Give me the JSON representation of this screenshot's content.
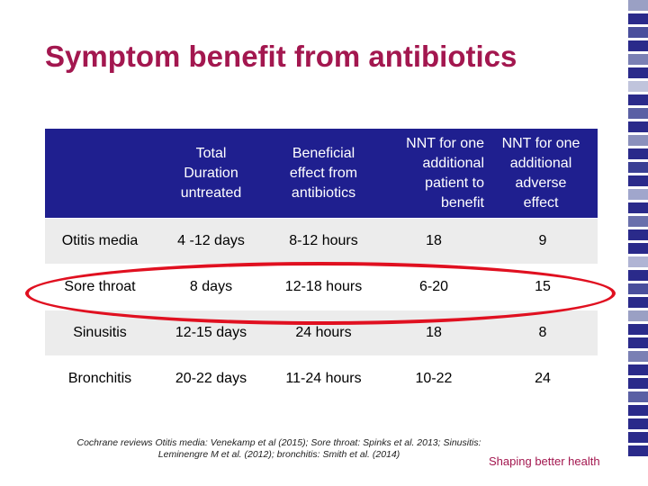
{
  "title": "Symptom benefit from antibiotics",
  "table": {
    "headers": [
      "",
      "Total Duration untreated",
      "Beneficial effect from antibiotics",
      "NNT for one additional patient to benefit",
      "NNT for one additional adverse effect"
    ],
    "header_lines": {
      "h1": [
        "Total",
        "Duration",
        "untreated"
      ],
      "h2": [
        "Beneficial",
        "effect from",
        "antibiotics"
      ],
      "h3": [
        "NNT for one",
        "additional",
        "patient to",
        "benefit"
      ],
      "h4": [
        "NNT for one",
        "additional",
        "adverse",
        "effect"
      ]
    },
    "rows": [
      [
        "Otitis media",
        "4 -12 days",
        "8-12 hours",
        "18",
        "9"
      ],
      [
        "Sore throat",
        "8 days",
        "12-18 hours",
        "6-20",
        "15"
      ],
      [
        "Sinusitis",
        "12-15 days",
        "24 hours",
        "18",
        "8"
      ],
      [
        "Bronchitis",
        "20-22 days",
        "11-24 hours",
        "10-22",
        "24"
      ]
    ]
  },
  "footnote": "Cochrane reviews Otitis media: Venekamp et al (2015); Sore throat: Spinks et al. 2013; Sinusitis: Leminengre M et al. (2012); bronchitis: Smith et al. (2014)",
  "brand": "Shaping better health",
  "colors": {
    "title": "#a3174f",
    "header_bg": "#1f1f8f",
    "highlight": "#e01020",
    "stripe": "#2a2a8a"
  }
}
